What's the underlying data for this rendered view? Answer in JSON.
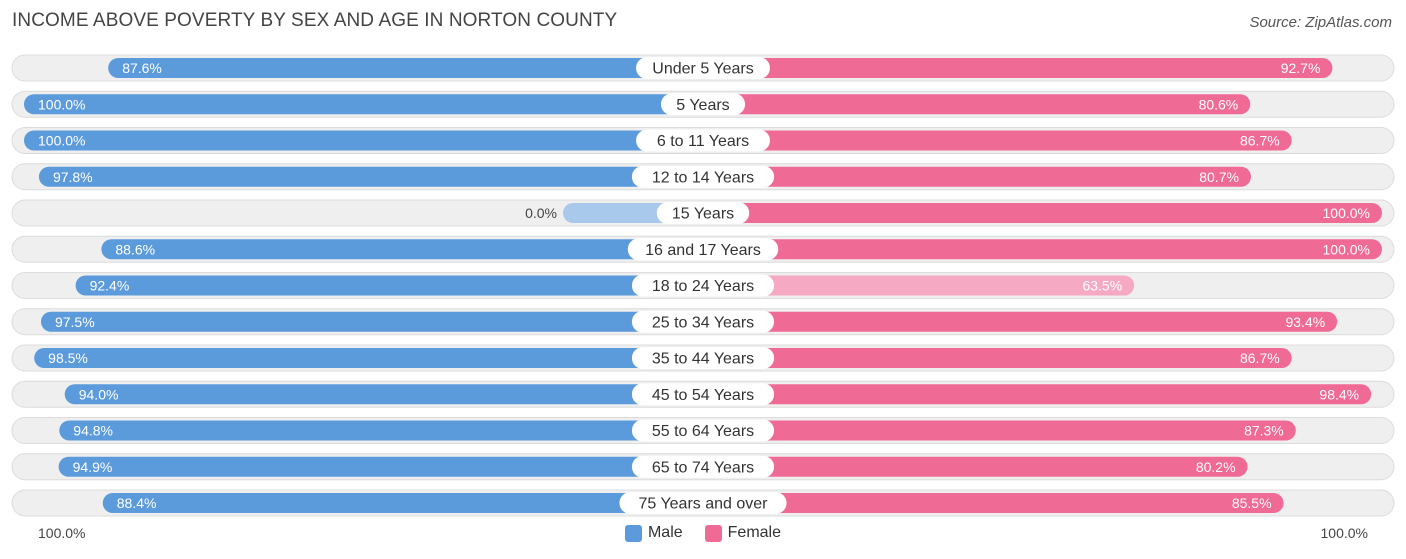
{
  "title": "INCOME ABOVE POVERTY BY SEX AND AGE IN NORTON COUNTY",
  "source": "Source: ZipAtlas.com",
  "axis": {
    "left_label": "100.0%",
    "right_label": "100.0%"
  },
  "legend": {
    "male_label": "Male",
    "female_label": "Female"
  },
  "colors": {
    "male": "#5b9bdc",
    "male_light": "#a9c9ec",
    "female": "#f06a96",
    "female_light": "#f6a9c2",
    "track": "#efefef",
    "track_border": "#dcdcdc"
  },
  "chart_data": {
    "type": "bar",
    "orientation": "horizontal-diverging",
    "title": "INCOME ABOVE POVERTY BY SEX AND AGE IN NORTON COUNTY",
    "categories": [
      "Under 5 Years",
      "5 Years",
      "6 to 11 Years",
      "12 to 14 Years",
      "15 Years",
      "16 and 17 Years",
      "18 to 24 Years",
      "25 to 34 Years",
      "35 to 44 Years",
      "45 to 54 Years",
      "55 to 64 Years",
      "65 to 74 Years",
      "75 Years and over"
    ],
    "series": [
      {
        "name": "Male",
        "values": [
          87.6,
          100.0,
          100.0,
          97.8,
          0.0,
          88.6,
          92.4,
          97.5,
          98.5,
          94.0,
          94.8,
          94.9,
          88.4
        ],
        "labels": [
          "87.6%",
          "100.0%",
          "100.0%",
          "97.8%",
          "0.0%",
          "88.6%",
          "92.4%",
          "97.5%",
          "98.5%",
          "94.0%",
          "94.8%",
          "94.9%",
          "88.4%"
        ]
      },
      {
        "name": "Female",
        "values": [
          92.7,
          80.6,
          86.7,
          80.7,
          100.0,
          100.0,
          63.5,
          93.4,
          86.7,
          98.4,
          87.3,
          80.2,
          85.5
        ],
        "labels": [
          "92.7%",
          "80.6%",
          "86.7%",
          "80.7%",
          "100.0%",
          "100.0%",
          "63.5%",
          "93.4%",
          "86.7%",
          "98.4%",
          "87.3%",
          "80.2%",
          "85.5%"
        ]
      }
    ],
    "xlim": [
      0,
      100
    ],
    "legend_position": "bottom-center"
  }
}
